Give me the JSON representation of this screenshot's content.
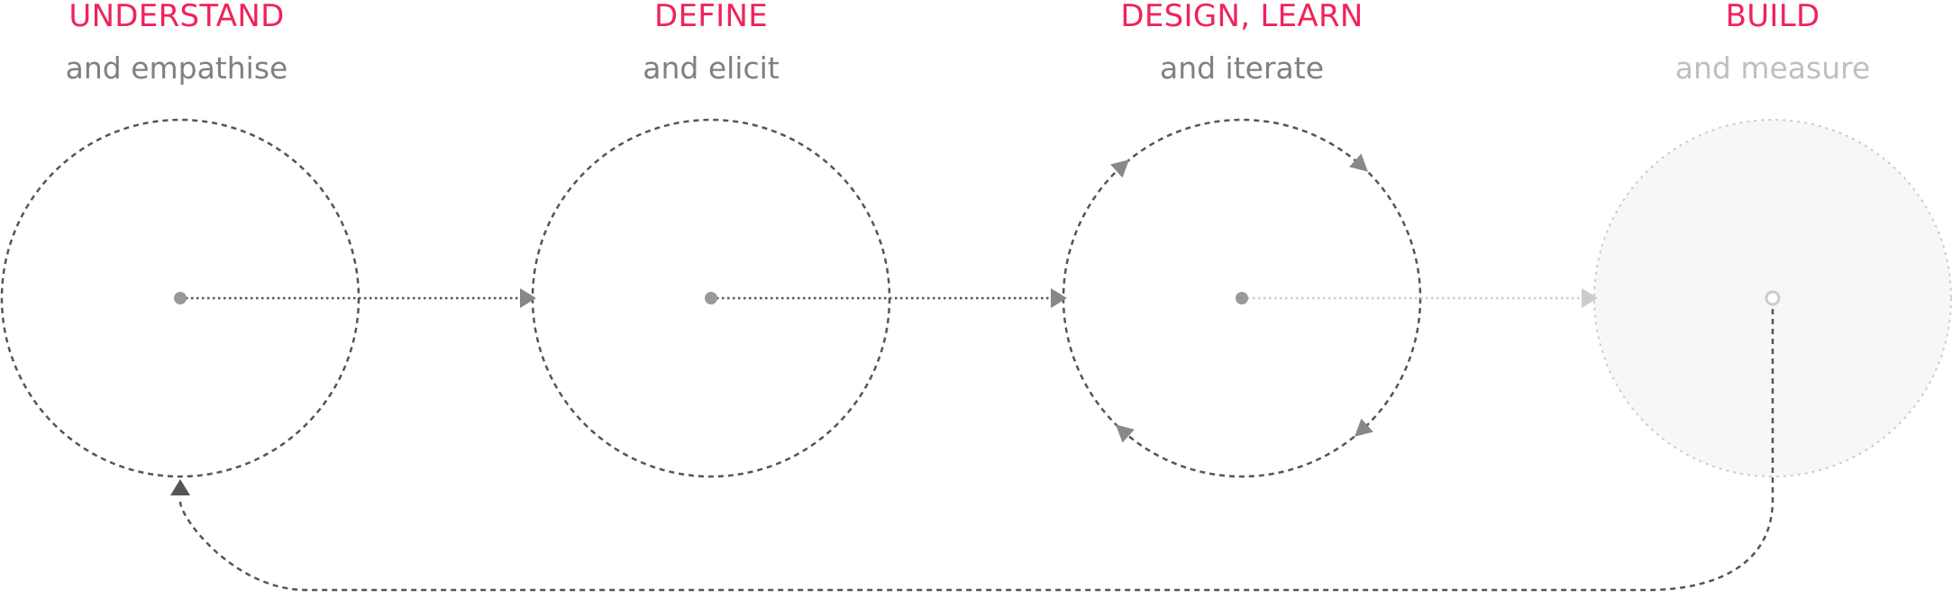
{
  "colors": {
    "accent": "#f0235a",
    "text_active": "#808080",
    "text_faded": "#bfbfbf",
    "stroke_dark": "#555555",
    "stroke_faded": "#cccccc",
    "dot": "#999999",
    "faded_fill": "#f7f7f7"
  },
  "stages": [
    {
      "title": "UNDERSTAND",
      "subtitle": "and empathise"
    },
    {
      "title": "DEFINE",
      "subtitle": "and elicit"
    },
    {
      "title": "DESIGN, LEARN",
      "subtitle": "and iterate"
    },
    {
      "title": "BUILD",
      "subtitle": "and measure"
    }
  ]
}
